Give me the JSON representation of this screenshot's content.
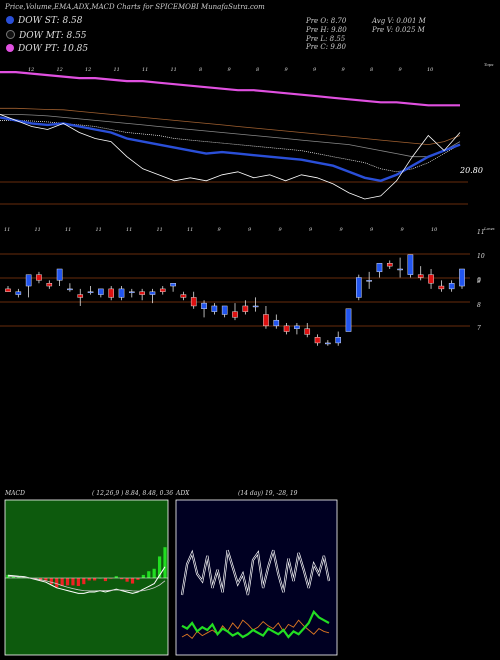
{
  "header": {
    "title": "Price,Volume,EMA,ADX,MACD Charts for SPICEMOBI MunafaSutra.com",
    "prev_open": "Pre O: 8.70",
    "prev_high": "Pre H: 9.80",
    "prev_low": "Pre L: 8.55",
    "prev_close": "Pre C: 9.80",
    "avg_vol": "Avg V: 0.001 M",
    "prev_vol": "Pre V: 0.025 M"
  },
  "dow": [
    {
      "label": "DOW ST: 8.58",
      "color": "#2a4fd8"
    },
    {
      "label": "DOW MT: 8.55",
      "color": "#111111"
    },
    {
      "label": "DOW PT: 10.85",
      "color": "#e050e0"
    }
  ],
  "colors": {
    "bull": "#2255ee",
    "bear": "#dd1111",
    "ema_short": "#2a4fd8",
    "ema_long": "#e050e0",
    "macd_hist": "#ee2222",
    "adx_plus": "#22dd22",
    "adx_minus": "#dd7722",
    "line_white": "#ffffff"
  },
  "chart_data": [
    {
      "type": "line",
      "name": "ema-panel",
      "label_right_top": "Tops",
      "price_label": "20.80",
      "top_tick_labels": [
        "12",
        "12",
        "12",
        "11",
        "11",
        "11",
        "8",
        "9",
        "8",
        "9",
        "9",
        "9",
        "8",
        "9",
        "10"
      ],
      "x": [
        0,
        2,
        4,
        6,
        8,
        10,
        12,
        14,
        16,
        18,
        20,
        22,
        24,
        26,
        28,
        30,
        32,
        34,
        36,
        38,
        40,
        42,
        44,
        46,
        48,
        50,
        52,
        54,
        56,
        58
      ],
      "series": [
        {
          "name": "",
          "values": [
            20.6,
            20.6,
            20.55,
            20.5,
            20.45,
            20.4,
            20.4,
            20.35,
            20.3,
            20.3,
            20.25,
            20.2,
            20.15,
            20.1,
            20.05,
            20.0,
            20.0,
            19.95,
            19.9,
            19.85,
            19.8,
            19.75,
            19.7,
            19.65,
            19.6,
            19.6,
            19.55,
            19.5,
            19.5,
            19.5
          ]
        },
        {
          "name": "",
          "values": [
            19.4,
            19.4,
            19.38,
            19.36,
            19.35,
            19.3,
            19.25,
            19.2,
            19.15,
            19.1,
            19.05,
            19.0,
            18.95,
            18.9,
            18.85,
            18.8,
            18.75,
            18.7,
            18.65,
            18.6,
            18.55,
            18.5,
            18.45,
            18.4,
            18.35,
            18.3,
            18.25,
            18.2,
            18.3,
            18.5
          ]
        },
        {
          "name": "",
          "values": [
            19.2,
            19.2,
            19.18,
            19.15,
            19.1,
            19.05,
            19.0,
            18.95,
            18.9,
            18.85,
            18.8,
            18.75,
            18.7,
            18.65,
            18.6,
            18.55,
            18.5,
            18.45,
            18.4,
            18.35,
            18.3,
            18.25,
            18.2,
            18.1,
            18.0,
            17.9,
            17.8,
            17.8,
            18.0,
            18.3
          ]
        },
        {
          "name": "",
          "values": [
            19.0,
            19.0,
            18.98,
            18.95,
            18.9,
            18.85,
            18.8,
            18.7,
            18.6,
            18.55,
            18.5,
            18.4,
            18.35,
            18.3,
            18.25,
            18.2,
            18.15,
            18.1,
            18.05,
            18.0,
            17.9,
            17.8,
            17.7,
            17.6,
            17.4,
            17.3,
            17.4,
            17.6,
            17.9,
            18.2
          ]
        },
        {
          "name": "",
          "values": [
            19.1,
            19.0,
            18.9,
            18.85,
            18.9,
            18.8,
            18.7,
            18.6,
            18.4,
            18.3,
            18.2,
            18.1,
            18.0,
            17.9,
            17.95,
            17.9,
            17.85,
            17.8,
            17.75,
            17.7,
            17.6,
            17.5,
            17.3,
            17.1,
            17.0,
            17.2,
            17.5,
            17.8,
            18.0,
            18.2
          ]
        },
        {
          "name": "",
          "values": [
            19.2,
            19.0,
            18.8,
            18.7,
            18.9,
            18.6,
            18.4,
            18.3,
            17.8,
            17.4,
            17.2,
            17.0,
            17.1,
            17.0,
            17.2,
            17.3,
            17.1,
            17.2,
            17.0,
            17.2,
            17.1,
            16.9,
            16.6,
            16.4,
            16.5,
            17.0,
            17.8,
            18.5,
            18.0,
            18.6
          ]
        }
      ]
    },
    {
      "type": "candlestick",
      "name": "price-panel",
      "label_right_top": "Lows",
      "y_tick_labels": [
        "11",
        "10",
        "9",
        "9",
        "8",
        "7"
      ],
      "top_tick_labels": [
        "11",
        "11",
        "11",
        "11",
        "11",
        "11",
        "11",
        "9",
        "9",
        "9",
        "9",
        "9",
        "9",
        "9",
        "10"
      ],
      "candles": [
        {
          "o": 8.9,
          "h": 9.0,
          "l": 8.8,
          "c": 8.8
        },
        {
          "o": 8.7,
          "h": 8.9,
          "l": 8.6,
          "c": 8.8
        },
        {
          "o": 9.0,
          "h": 9.4,
          "l": 8.6,
          "c": 9.4
        },
        {
          "o": 9.4,
          "h": 9.5,
          "l": 9.1,
          "c": 9.2
        },
        {
          "o": 9.1,
          "h": 9.2,
          "l": 8.9,
          "c": 9.0
        },
        {
          "o": 9.2,
          "h": 9.6,
          "l": 9.0,
          "c": 9.6
        },
        {
          "o": 8.9,
          "h": 9.1,
          "l": 8.8,
          "c": 8.9
        },
        {
          "o": 8.7,
          "h": 8.9,
          "l": 8.3,
          "c": 8.6
        },
        {
          "o": 8.8,
          "h": 9.0,
          "l": 8.7,
          "c": 8.8
        },
        {
          "o": 8.7,
          "h": 8.9,
          "l": 8.6,
          "c": 8.9
        },
        {
          "o": 8.9,
          "h": 9.0,
          "l": 8.5,
          "c": 8.6
        },
        {
          "o": 8.6,
          "h": 9.0,
          "l": 8.5,
          "c": 8.9
        },
        {
          "o": 8.8,
          "h": 8.9,
          "l": 8.6,
          "c": 8.8
        },
        {
          "o": 8.8,
          "h": 8.9,
          "l": 8.5,
          "c": 8.7
        },
        {
          "o": 8.7,
          "h": 8.9,
          "l": 8.4,
          "c": 8.8
        },
        {
          "o": 8.9,
          "h": 9.0,
          "l": 8.7,
          "c": 8.8
        },
        {
          "o": 9.0,
          "h": 9.1,
          "l": 8.8,
          "c": 9.1
        },
        {
          "o": 8.7,
          "h": 8.8,
          "l": 8.5,
          "c": 8.6
        },
        {
          "o": 8.6,
          "h": 8.8,
          "l": 8.2,
          "c": 8.3
        },
        {
          "o": 8.2,
          "h": 8.5,
          "l": 7.9,
          "c": 8.4
        },
        {
          "o": 8.1,
          "h": 8.4,
          "l": 8.0,
          "c": 8.3
        },
        {
          "o": 8.0,
          "h": 8.3,
          "l": 7.9,
          "c": 8.3
        },
        {
          "o": 8.1,
          "h": 8.4,
          "l": 7.8,
          "c": 7.9
        },
        {
          "o": 8.3,
          "h": 8.5,
          "l": 8.0,
          "c": 8.1
        },
        {
          "o": 8.3,
          "h": 8.6,
          "l": 8.1,
          "c": 8.3
        },
        {
          "o": 8.0,
          "h": 8.3,
          "l": 7.5,
          "c": 7.6
        },
        {
          "o": 7.6,
          "h": 8.0,
          "l": 7.5,
          "c": 7.8
        },
        {
          "o": 7.6,
          "h": 7.7,
          "l": 7.3,
          "c": 7.4
        },
        {
          "o": 7.5,
          "h": 7.7,
          "l": 7.3,
          "c": 7.6
        },
        {
          "o": 7.5,
          "h": 7.7,
          "l": 7.2,
          "c": 7.3
        },
        {
          "o": 7.2,
          "h": 7.3,
          "l": 6.9,
          "c": 7.0
        },
        {
          "o": 7.0,
          "h": 7.1,
          "l": 6.9,
          "c": 7.0
        },
        {
          "o": 7.0,
          "h": 7.4,
          "l": 6.9,
          "c": 7.2
        },
        {
          "o": 7.4,
          "h": 8.2,
          "l": 7.4,
          "c": 8.2
        },
        {
          "o": 8.6,
          "h": 9.4,
          "l": 8.5,
          "c": 9.3
        },
        {
          "o": 9.2,
          "h": 9.5,
          "l": 8.9,
          "c": 9.2
        },
        {
          "o": 9.5,
          "h": 9.8,
          "l": 9.3,
          "c": 9.8
        },
        {
          "o": 9.8,
          "h": 9.9,
          "l": 9.6,
          "c": 9.7
        },
        {
          "o": 9.6,
          "h": 10.0,
          "l": 9.3,
          "c": 9.6
        },
        {
          "o": 9.4,
          "h": 10.1,
          "l": 9.3,
          "c": 10.1
        },
        {
          "o": 9.4,
          "h": 9.7,
          "l": 9.2,
          "c": 9.3
        },
        {
          "o": 9.4,
          "h": 9.6,
          "l": 8.9,
          "c": 9.1
        },
        {
          "o": 9.0,
          "h": 9.2,
          "l": 8.8,
          "c": 8.9
        },
        {
          "o": 8.9,
          "h": 9.2,
          "l": 8.8,
          "c": 9.1
        },
        {
          "o": 9.0,
          "h": 9.6,
          "l": 8.9,
          "c": 9.6
        }
      ]
    },
    {
      "type": "line",
      "name": "macd-panel",
      "title": "MACD",
      "params": "( 12,26,9 ) 8.84, 8.48, 0.36",
      "macd": [
        0.1,
        0.08,
        0.06,
        0.05,
        0.0,
        -0.05,
        -0.1,
        -0.15,
        -0.25,
        -0.35,
        -0.4,
        -0.45,
        -0.5,
        -0.55,
        -0.55,
        -0.5,
        -0.5,
        -0.45,
        -0.5,
        -0.45,
        -0.4,
        -0.45,
        -0.5,
        -0.55,
        -0.5,
        -0.4,
        -0.3,
        -0.2,
        0.1,
        0.4
      ],
      "signal": [
        0.05,
        0.05,
        0.04,
        0.03,
        0.0,
        -0.03,
        -0.06,
        -0.1,
        -0.15,
        -0.2,
        -0.27,
        -0.33,
        -0.38,
        -0.42,
        -0.45,
        -0.46,
        -0.46,
        -0.45,
        -0.45,
        -0.44,
        -0.43,
        -0.43,
        -0.44,
        -0.46,
        -0.47,
        -0.45,
        -0.41,
        -0.35,
        -0.25,
        -0.1
      ],
      "hist": [
        0.05,
        0.03,
        0.02,
        0.02,
        0.0,
        -0.02,
        -0.04,
        -0.05,
        -0.1,
        -0.15,
        -0.13,
        -0.12,
        -0.12,
        -0.13,
        -0.1,
        -0.04,
        -0.04,
        0.0,
        -0.05,
        -0.01,
        0.03,
        -0.02,
        -0.06,
        -0.09,
        -0.03,
        0.05,
        0.11,
        0.15,
        0.35,
        0.5
      ]
    },
    {
      "type": "line",
      "name": "adx-panel",
      "title": "ADX",
      "params": "(14 day) 19, -28, 19",
      "adx": [
        40,
        62,
        70,
        55,
        50,
        68,
        45,
        58,
        42,
        72,
        60,
        48,
        55,
        40,
        65,
        70,
        45,
        60,
        72,
        55,
        42,
        66,
        50,
        70,
        58,
        45,
        62,
        55,
        68,
        50
      ],
      "plus_di": [
        18,
        16,
        20,
        14,
        17,
        15,
        19,
        12,
        16,
        14,
        11,
        13,
        10,
        12,
        15,
        13,
        11,
        16,
        14,
        12,
        15,
        10,
        14,
        12,
        16,
        20,
        28,
        24,
        22,
        20
      ],
      "minus_di": [
        10,
        12,
        9,
        14,
        11,
        13,
        15,
        12,
        18,
        14,
        20,
        16,
        22,
        19,
        15,
        17,
        21,
        18,
        16,
        20,
        14,
        19,
        17,
        22,
        18,
        15,
        12,
        16,
        14,
        13
      ]
    }
  ]
}
